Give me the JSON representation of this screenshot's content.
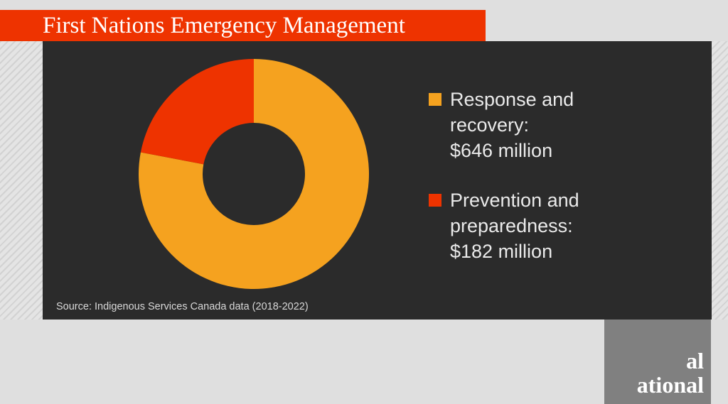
{
  "title": "First Nations Emergency Management",
  "chart_data": {
    "type": "pie",
    "variant": "donut",
    "title": "First Nations Emergency Management",
    "unit": "million CAD",
    "slices": [
      {
        "label_lines": [
          "Response and",
          "recovery:",
          "$646 million"
        ],
        "name": "Response and recovery",
        "value": 646,
        "color": "#f5a21f"
      },
      {
        "label_lines": [
          "Prevention and",
          "preparedness:",
          "$182 million"
        ],
        "name": "Prevention and preparedness",
        "value": 182,
        "color": "#ee3300"
      }
    ],
    "legend_position": "right",
    "source": "Source: Indigenous Services Canada data (2018-2022)"
  },
  "logo": {
    "lines": [
      "al",
      "ational"
    ]
  }
}
